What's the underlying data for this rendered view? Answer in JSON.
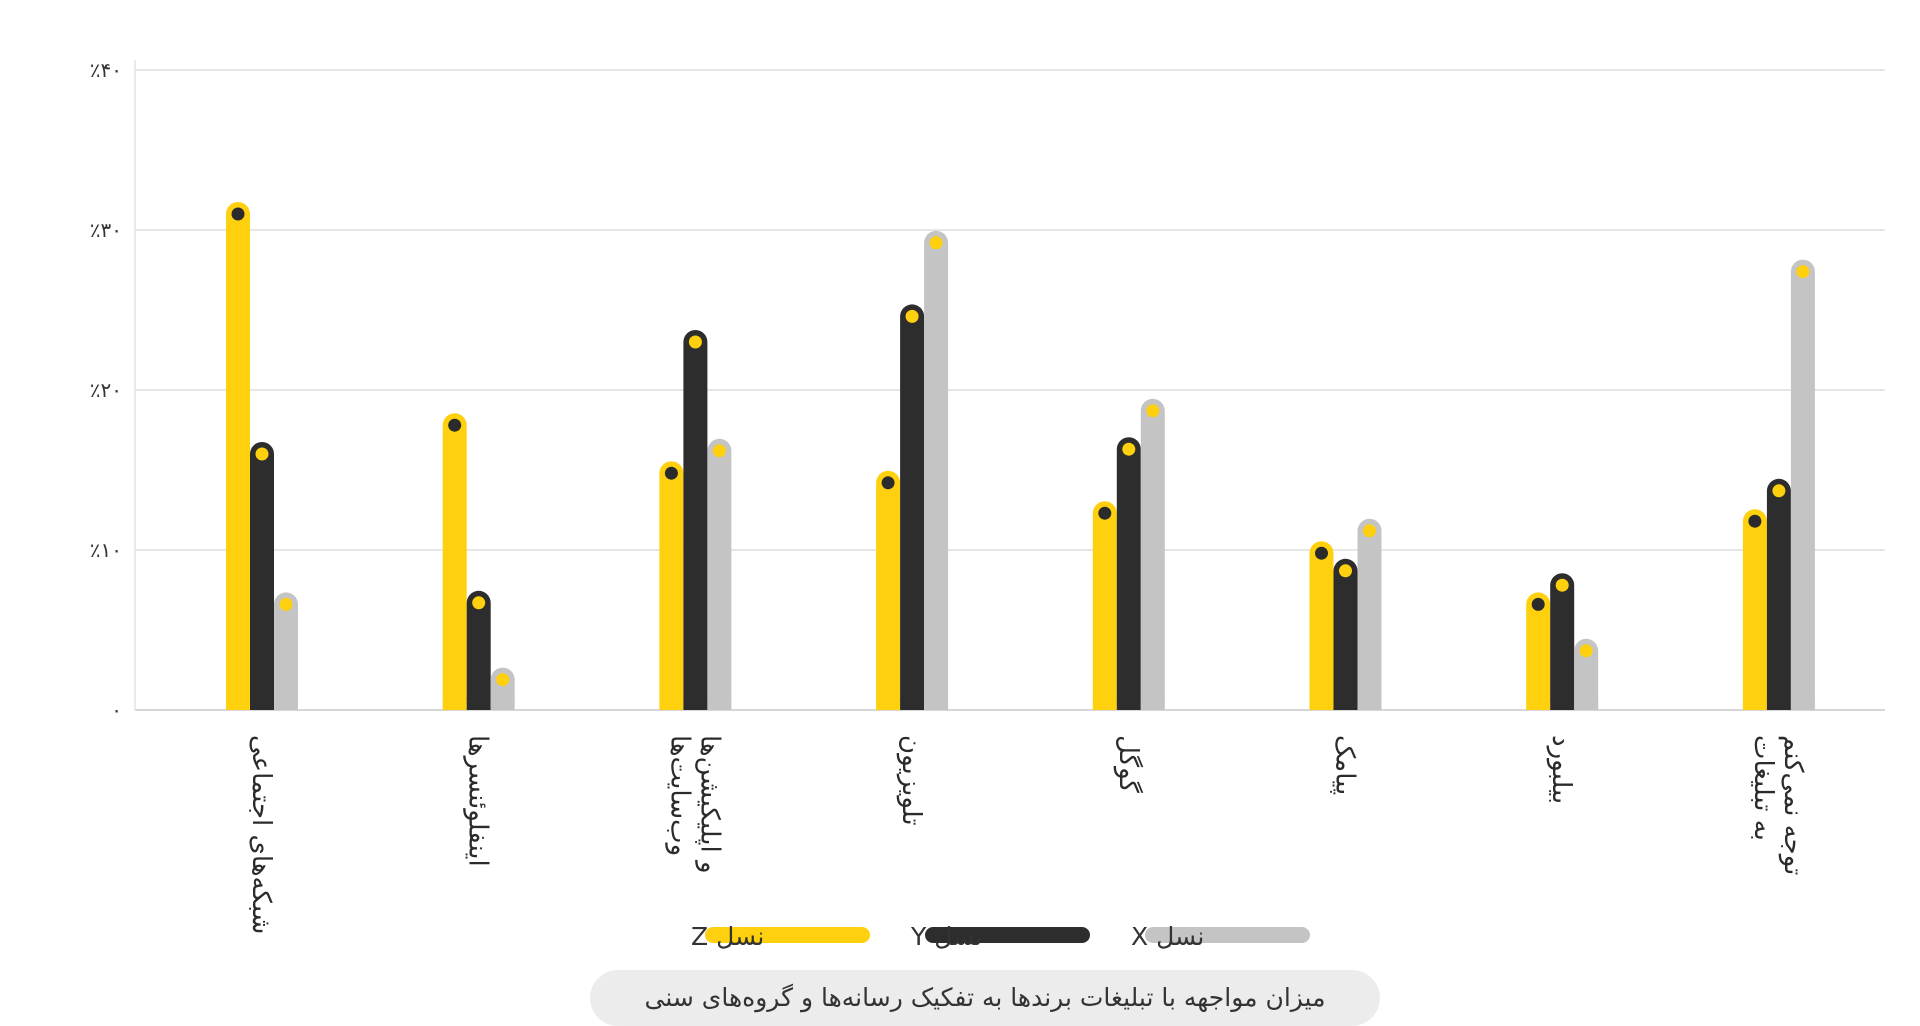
{
  "chart_data": {
    "type": "bar",
    "title": "",
    "xlabel": "",
    "ylabel": "",
    "ylim": [
      0,
      40
    ],
    "grid": true,
    "legend_position": "bottom",
    "yticks": [
      {
        "value": 0,
        "label": "۰"
      },
      {
        "value": 10,
        "label": "٪۱۰"
      },
      {
        "value": 20,
        "label": "٪۲۰"
      },
      {
        "value": 30,
        "label": "٪۳۰"
      },
      {
        "value": 40,
        "label": "٪۴۰"
      }
    ],
    "categories": [
      [
        "شبکه‌های اجتماعی"
      ],
      [
        "اینفلوئنسرها"
      ],
      [
        "وب‌سایت‌ها",
        "و اپلیکیشن‌ها"
      ],
      [
        "تلویزیون"
      ],
      [
        "گوگل"
      ],
      [
        "پیامک"
      ],
      [
        "بیلبورد"
      ],
      [
        "به تبلیغات",
        "توجه نمی‌کنم"
      ]
    ],
    "series": [
      {
        "name": "نسل Z",
        "color": "#FFD00D",
        "marker": "#2B2B2B",
        "values": [
          31.0,
          17.8,
          14.8,
          14.2,
          12.3,
          9.8,
          6.6,
          11.8
        ]
      },
      {
        "name": "نسل Y",
        "color": "#2D2D2D",
        "marker": "#FFD00D",
        "values": [
          16.0,
          6.7,
          23.0,
          24.6,
          16.3,
          8.7,
          7.8,
          13.7
        ]
      },
      {
        "name": "نسل X",
        "color": "#C4C4C4",
        "marker": "#FFD00D",
        "values": [
          6.6,
          1.9,
          16.2,
          29.2,
          18.7,
          11.2,
          3.7,
          27.4
        ]
      }
    ],
    "legend_order": [
      2,
      1,
      0
    ],
    "caption": "میزان مواجهه با تبلیغات برندها به تفکیک رسانه‌ها و گروه‌های سنی"
  }
}
